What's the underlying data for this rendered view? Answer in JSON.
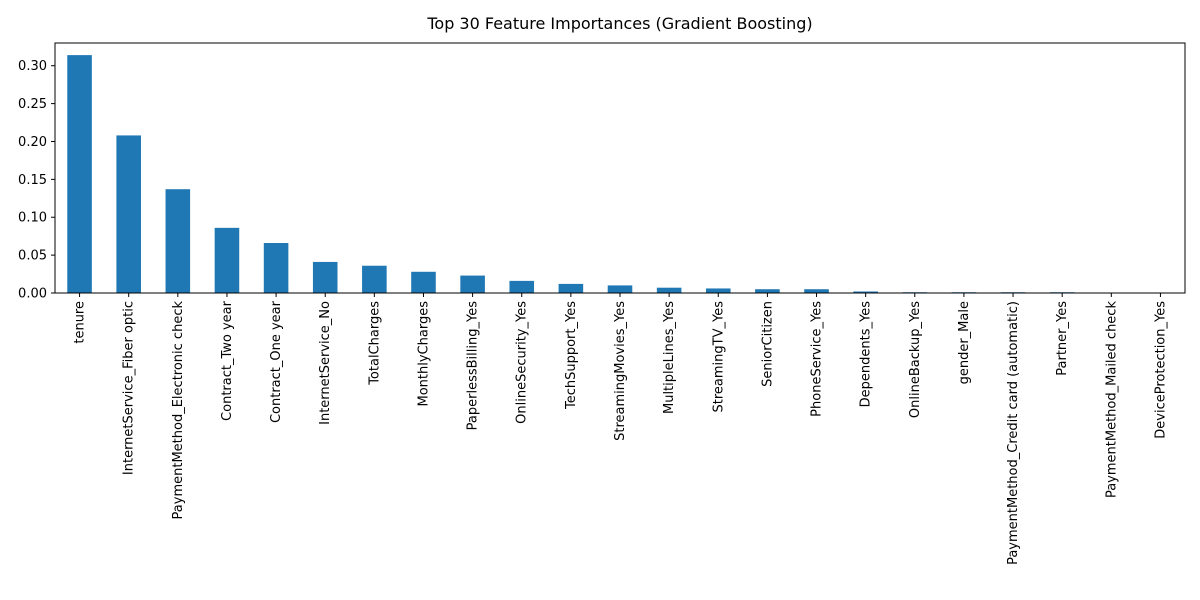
{
  "chart_data": {
    "type": "bar",
    "title": "Top 30 Feature Importances (Gradient Boosting)",
    "xlabel": "",
    "ylabel": "",
    "ylim": [
      0,
      0.33
    ],
    "yticks": [
      0.0,
      0.05,
      0.1,
      0.15,
      0.2,
      0.25,
      0.3
    ],
    "ytick_labels": [
      "0.00",
      "0.05",
      "0.10",
      "0.15",
      "0.20",
      "0.25",
      "0.30"
    ],
    "grid": false,
    "bar_color": "#1f77b4",
    "categories": [
      "tenure",
      "InternetService_Fiber optic",
      "PaymentMethod_Electronic check",
      "Contract_Two year",
      "Contract_One year",
      "InternetService_No",
      "TotalCharges",
      "MonthlyCharges",
      "PaperlessBilling_Yes",
      "OnlineSecurity_Yes",
      "TechSupport_Yes",
      "StreamingMovies_Yes",
      "MultipleLines_Yes",
      "StreamingTV_Yes",
      "SeniorCitizen",
      "PhoneService_Yes",
      "Dependents_Yes",
      "OnlineBackup_Yes",
      "gender_Male",
      "PaymentMethod_Credit card (automatic)",
      "Partner_Yes",
      "PaymentMethod_Mailed check",
      "DeviceProtection_Yes"
    ],
    "values": [
      0.314,
      0.208,
      0.137,
      0.086,
      0.066,
      0.041,
      0.036,
      0.028,
      0.023,
      0.016,
      0.012,
      0.01,
      0.007,
      0.006,
      0.005,
      0.005,
      0.002,
      0.001,
      0.001,
      0.001,
      0.001,
      0.0004,
      0.0002
    ]
  }
}
